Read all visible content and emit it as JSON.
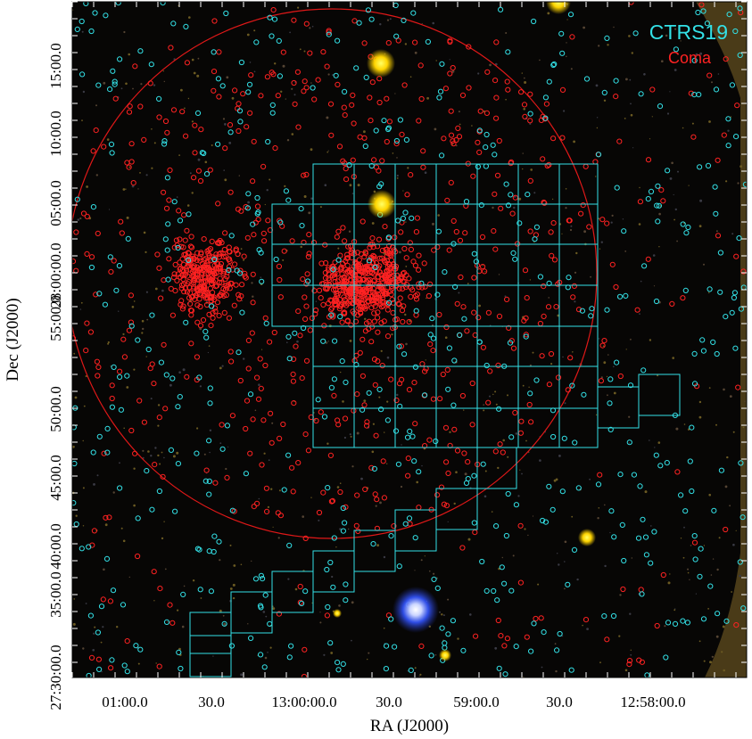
{
  "figure": {
    "legend": [
      {
        "label": "CTRS19",
        "color": "#33e0e6"
      },
      {
        "label": "Coma",
        "color": "#ff2222"
      }
    ],
    "x_axis": {
      "title": "RA (J2000)",
      "ticks": [
        "01:00.0",
        "30.0",
        "13:00:00.0",
        "30.0",
        "59:00.0",
        "30.0",
        "12:58:00.0"
      ]
    },
    "y_axis": {
      "title": "Dec (J2000)",
      "ticks": [
        "27:30:00.0",
        "35:00.0",
        "40:00.0",
        "45:00.0",
        "50:00.0",
        "55:00.0",
        "28:00:00.0",
        "05:00.0",
        "10:00.0",
        "15:00.0"
      ]
    },
    "colors": {
      "sky": "#070605",
      "ctrs_markers": "#33e0e6",
      "coma_markers": "#ff2222",
      "big_circle": "#e01818",
      "star_yellow": "#ffd400",
      "star_blue": "#3355ff",
      "edge_fill": "#4a3b18"
    }
  }
}
